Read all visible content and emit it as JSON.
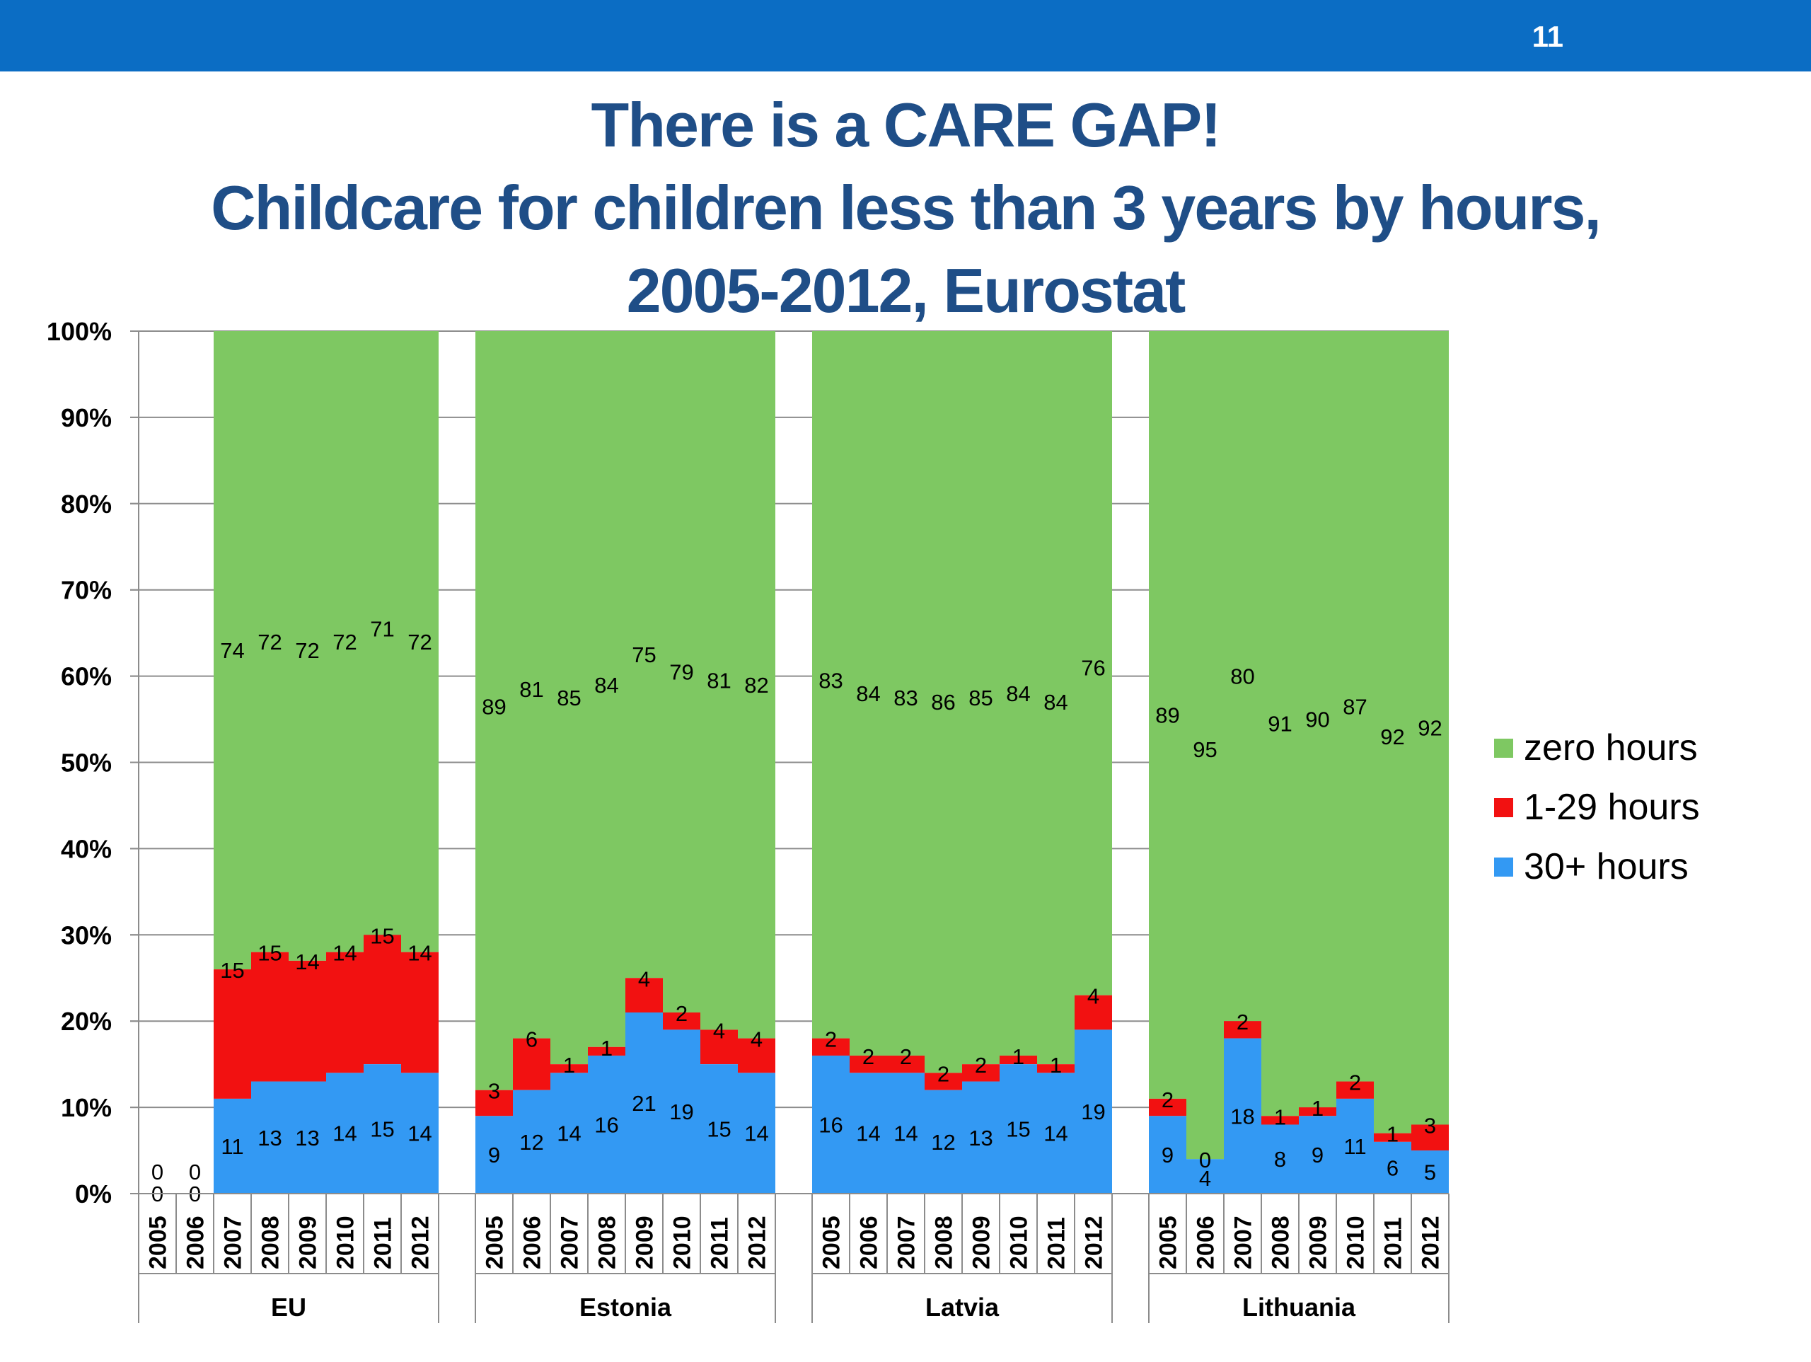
{
  "slide": {
    "page_number": "11",
    "title_line1": "There is a CARE GAP!",
    "title_line2": "Childcare for children less than 3 years by hours,",
    "title_line3": "2005-2012, Eurostat"
  },
  "colors": {
    "header_bar": "#0b6dc4",
    "title": "#1f4e87",
    "zero_hours": "#7ec862",
    "one_to_29_hours": "#f21111",
    "thirty_plus_hours": "#3399f3"
  },
  "chart_data": {
    "type": "bar",
    "stacked": true,
    "percent_stacked": true,
    "title": "",
    "ylim": [
      0,
      100
    ],
    "y_ticks": [
      "0%",
      "10%",
      "20%",
      "30%",
      "40%",
      "50%",
      "60%",
      "70%",
      "80%",
      "90%",
      "100%"
    ],
    "grid": true,
    "legend_placement": "right",
    "years": [
      "2005",
      "2006",
      "2007",
      "2008",
      "2009",
      "2010",
      "2011",
      "2012"
    ],
    "groups": [
      {
        "name": "EU",
        "thirty_plus": [
          0,
          0,
          11,
          13,
          13,
          14,
          15,
          14
        ],
        "one_to_29": [
          0,
          0,
          15,
          15,
          14,
          14,
          15,
          14
        ],
        "zero": [
          null,
          null,
          74,
          72,
          72,
          72,
          71,
          72
        ]
      },
      {
        "name": "Estonia",
        "thirty_plus": [
          9,
          12,
          14,
          16,
          21,
          19,
          15,
          14
        ],
        "one_to_29": [
          3,
          6,
          1,
          1,
          4,
          2,
          4,
          4
        ],
        "zero": [
          89,
          81,
          85,
          84,
          75,
          79,
          81,
          82
        ]
      },
      {
        "name": "Latvia",
        "thirty_plus": [
          16,
          14,
          14,
          12,
          13,
          15,
          14,
          19
        ],
        "one_to_29": [
          2,
          2,
          2,
          2,
          2,
          1,
          1,
          4
        ],
        "zero": [
          83,
          84,
          83,
          86,
          85,
          84,
          84,
          76
        ]
      },
      {
        "name": "Lithuania",
        "thirty_plus": [
          9,
          4,
          18,
          8,
          9,
          11,
          6,
          5
        ],
        "one_to_29": [
          2,
          0,
          2,
          1,
          1,
          2,
          1,
          3
        ],
        "zero": [
          89,
          95,
          80,
          91,
          90,
          87,
          92,
          92
        ]
      }
    ],
    "series": [
      {
        "key": "zero",
        "name": "zero hours",
        "color": "#7ec862"
      },
      {
        "key": "one_to_29",
        "name": "1-29 hours",
        "color": "#f21111"
      },
      {
        "key": "thirty_plus",
        "name": "30+ hours",
        "color": "#3399f3"
      }
    ]
  }
}
